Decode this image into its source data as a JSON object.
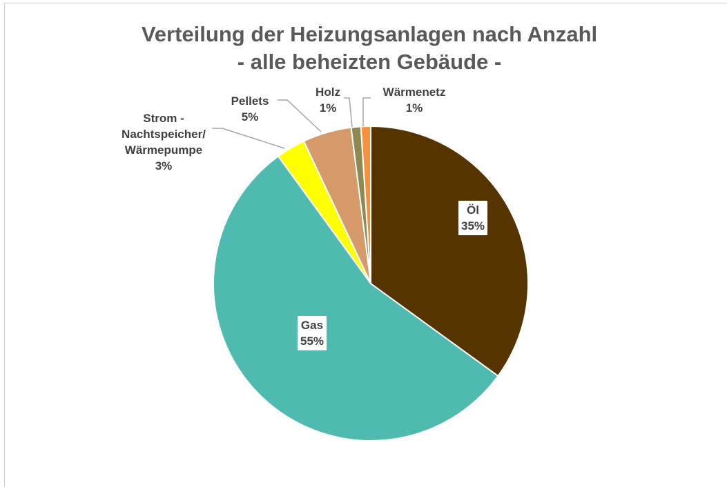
{
  "chart_data": {
    "type": "pie",
    "title": [
      "Verteilung der Heizungsanlagen nach Anzahl",
      "- alle beheizten Gebäude -"
    ],
    "categories": [
      "Öl",
      "Gas",
      "Strom - Nachtspeicher/ Wärmepumpe",
      "Pellets",
      "Holz",
      "Wärmenetz"
    ],
    "values": [
      35,
      55,
      3,
      5,
      1,
      1
    ],
    "value_labels": [
      "35%",
      "55%",
      "3%",
      "5%",
      "1%",
      "1%"
    ],
    "colors": [
      "#553400",
      "#4fbbb0",
      "#ffff00",
      "#d69a6a",
      "#8c8a52",
      "#f5913d"
    ]
  }
}
